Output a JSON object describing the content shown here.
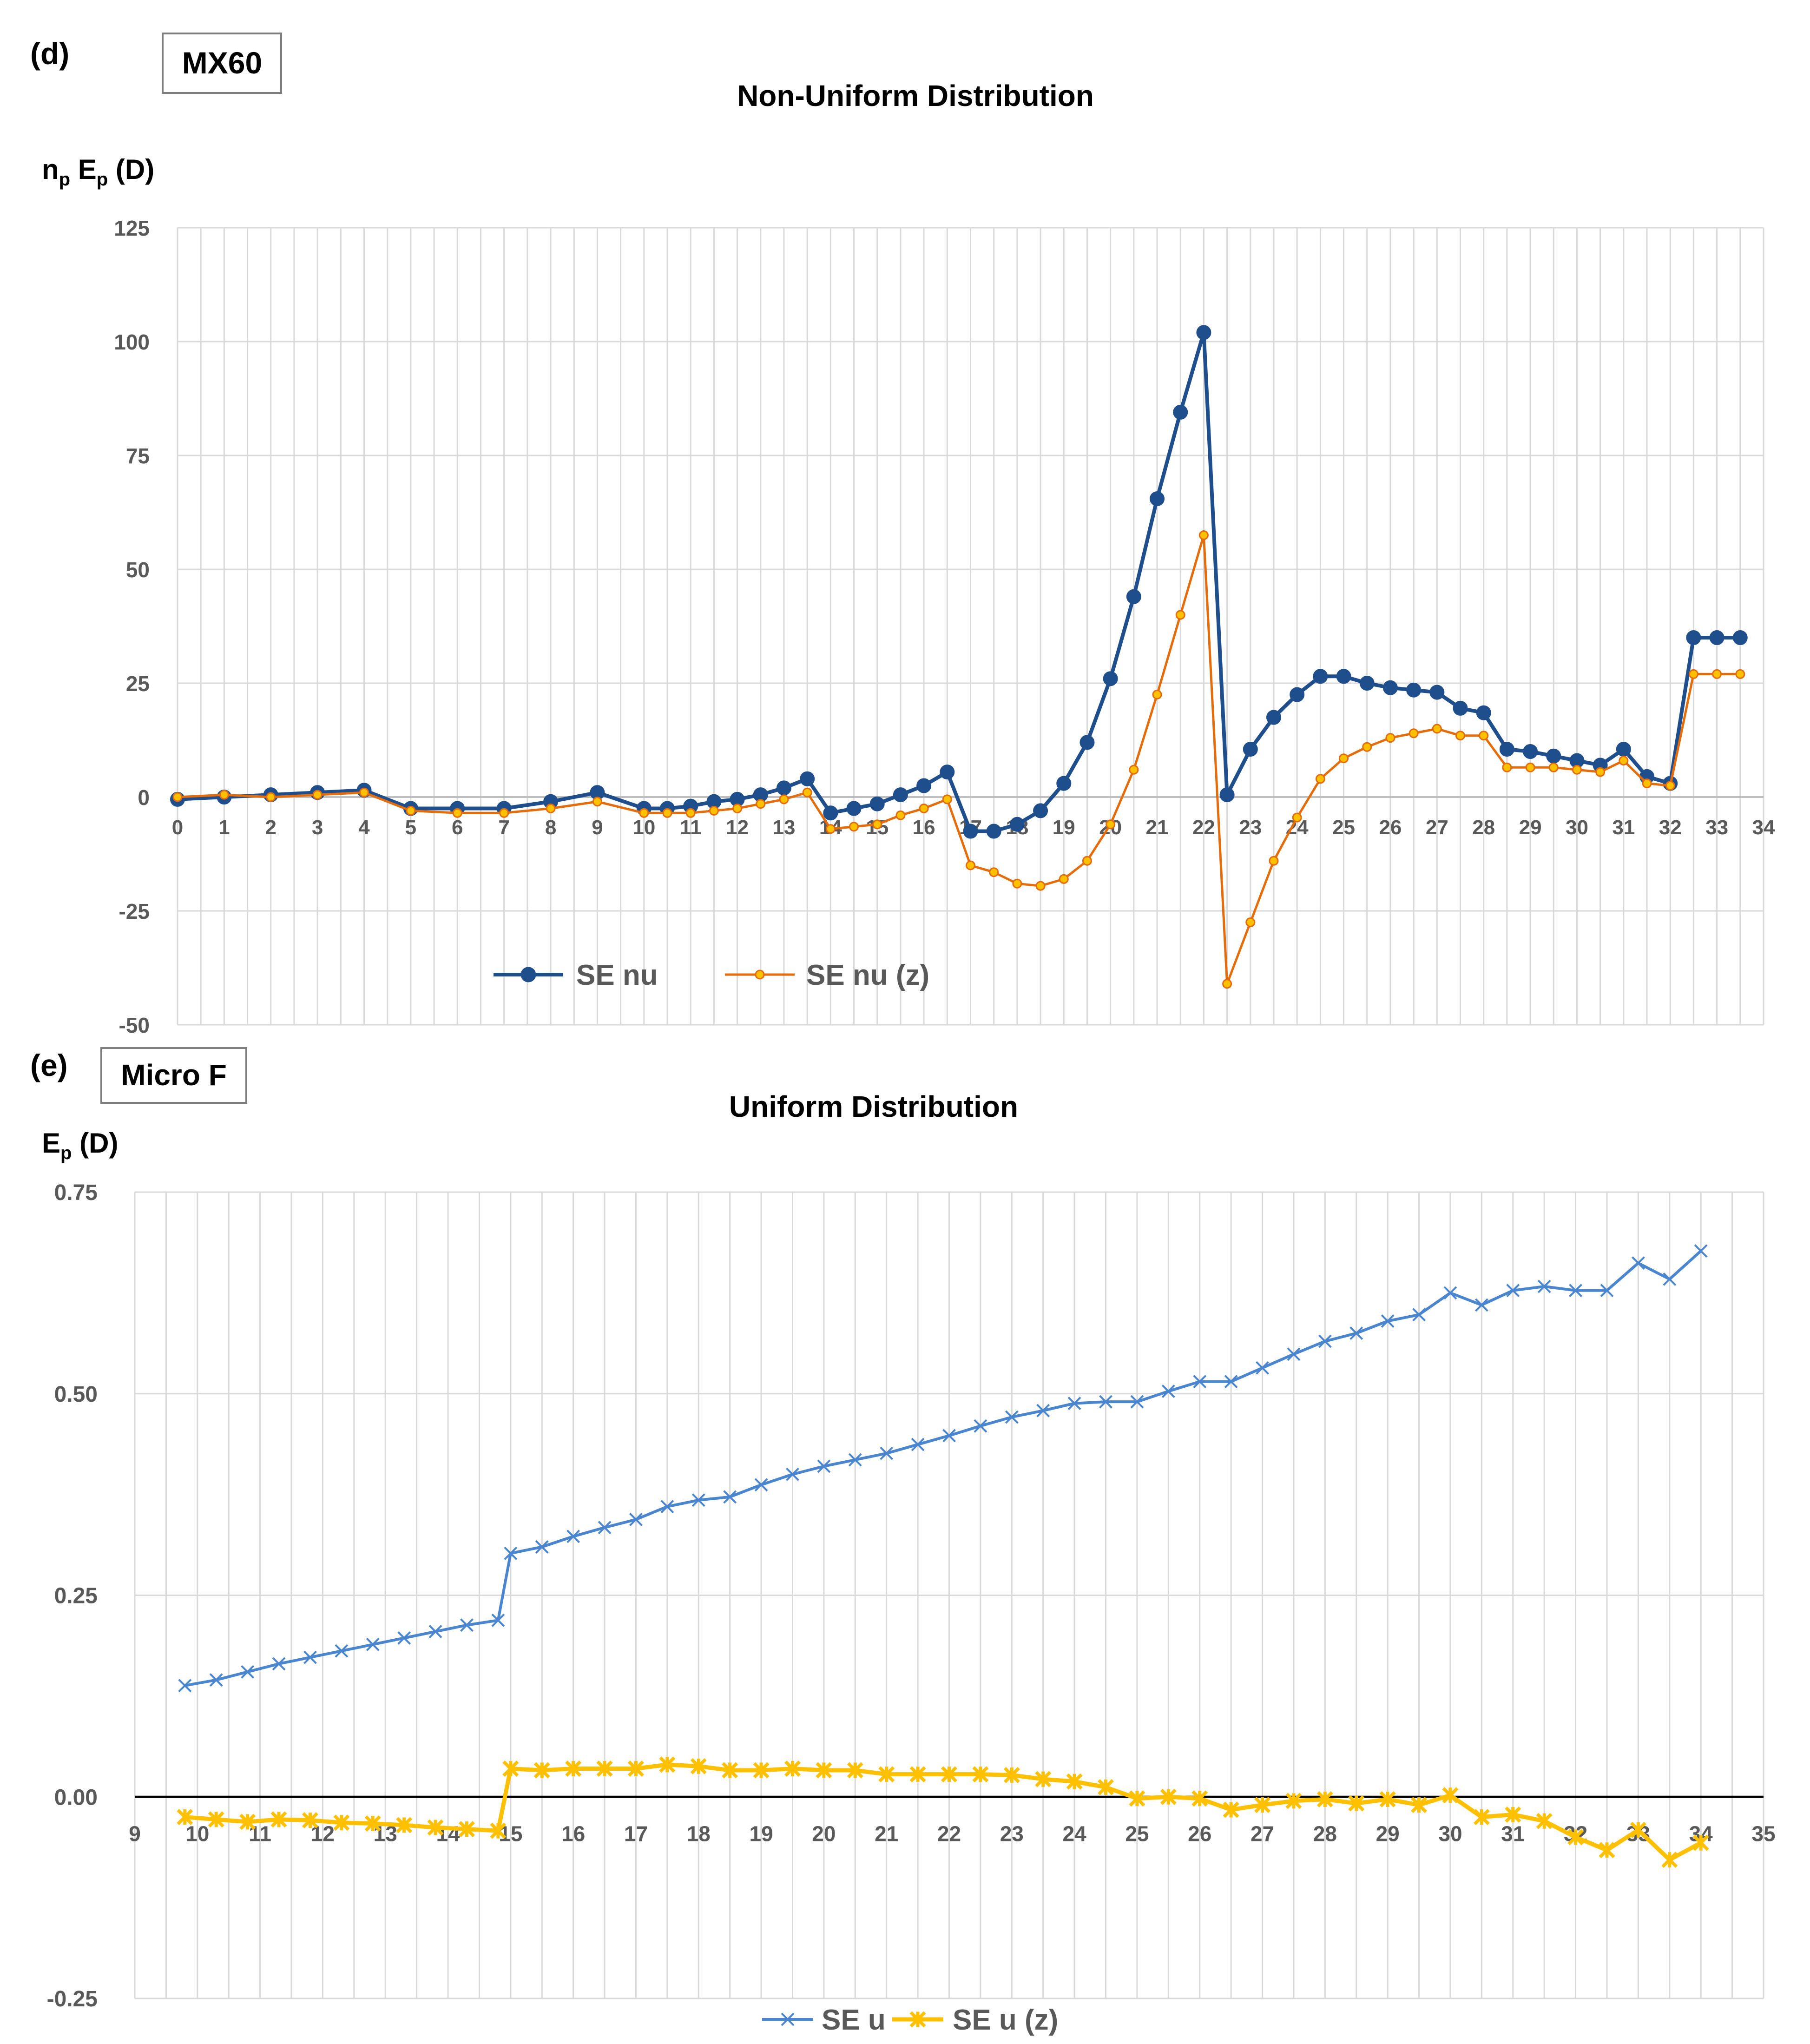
{
  "chart_data": [
    {
      "panel_label": "(d)",
      "tag": "MX60",
      "type": "line",
      "title": "Non-Uniform Distribution",
      "ylabel_main": "n",
      "ylabel_sub": "p",
      "ylabel_main2": " E",
      "ylabel_sub2": "p",
      "ylabel_unit": " (D)",
      "xlim": [
        0,
        34
      ],
      "ylim": [
        -50,
        125
      ],
      "xticks": [
        "0",
        "1",
        "2",
        "3",
        "4",
        "5",
        "6",
        "7",
        "8",
        "9",
        "10",
        "11",
        "12",
        "13",
        "14",
        "15",
        "16",
        "17",
        "18",
        "19",
        "20",
        "21",
        "22",
        "23",
        "24",
        "25",
        "26",
        "27",
        "28",
        "29",
        "30",
        "31",
        "32",
        "33",
        "34"
      ],
      "yticks": [
        "125",
        "100",
        "75",
        "50",
        "25",
        "0",
        "-25",
        "-50"
      ],
      "grid": true,
      "legend": "bottom-left",
      "colors": {
        "series1": "#1f4e8c",
        "series2": "#e46c0a"
      },
      "series": [
        {
          "name": "SE nu",
          "x": [
            0,
            1,
            2,
            3,
            4,
            5,
            6,
            7,
            8,
            9,
            10,
            10.5,
            11,
            11.5,
            12,
            12.5,
            13,
            13.5,
            14,
            14.5,
            15,
            15.5,
            16,
            16.5,
            17,
            17.5,
            18,
            18.5,
            19,
            19.5,
            20,
            20.5,
            21,
            21.5,
            22,
            22.5,
            23,
            23.5,
            24,
            24.5,
            25,
            25.5,
            26,
            26.5,
            27,
            27.5,
            28,
            28.5,
            29,
            29.5,
            30,
            30.5,
            31,
            31.5,
            32,
            32.5,
            33,
            33.5
          ],
          "values": [
            -0.5,
            0,
            0.5,
            1,
            1.5,
            -2.5,
            -2.5,
            -2.5,
            -1,
            1,
            -2.5,
            -2.5,
            -2,
            -1,
            -0.5,
            0.5,
            2,
            4,
            -3.5,
            -2.5,
            -1.5,
            0.5,
            2.5,
            5.5,
            -7.5,
            -7.5,
            -6,
            -3,
            3,
            12,
            26,
            44,
            65.5,
            84.5,
            102,
            0.5,
            10.5,
            17.5,
            22.5,
            26.5,
            26.5,
            25,
            24,
            23.5,
            23,
            19.5,
            18.5,
            10.5,
            10,
            9,
            8,
            7,
            10.5,
            4.5,
            3,
            35,
            35,
            35
          ]
        },
        {
          "name": "SE nu (z)",
          "x": [
            0,
            1,
            2,
            3,
            4,
            5,
            6,
            7,
            8,
            9,
            10,
            10.5,
            11,
            11.5,
            12,
            12.5,
            13,
            13.5,
            14,
            14.5,
            15,
            15.5,
            16,
            16.5,
            17,
            17.5,
            18,
            18.5,
            19,
            19.5,
            20,
            20.5,
            21,
            21.5,
            22,
            22.5,
            23,
            23.5,
            24,
            24.5,
            25,
            25.5,
            26,
            26.5,
            27,
            27.5,
            28,
            28.5,
            29,
            29.5,
            30,
            30.5,
            31,
            31.5,
            32,
            32.5,
            33,
            33.5
          ],
          "values": [
            0,
            0.5,
            0,
            0.5,
            1,
            -3,
            -3.5,
            -3.5,
            -2.5,
            -1,
            -3.5,
            -3.5,
            -3.5,
            -3,
            -2.5,
            -1.5,
            -0.5,
            1,
            -7,
            -6.5,
            -6,
            -4,
            -2.5,
            -0.5,
            -15,
            -16.5,
            -19,
            -19.5,
            -18,
            -14,
            -6,
            6,
            22.5,
            40,
            57.5,
            -41,
            -27.5,
            -14,
            -4.5,
            4,
            8.5,
            11,
            13,
            14,
            15,
            13.5,
            13.5,
            6.5,
            6.5,
            6.5,
            6,
            5.5,
            8,
            3,
            2.5,
            27,
            27,
            27
          ]
        }
      ]
    },
    {
      "panel_label": "(e)",
      "tag": "Micro F",
      "type": "line",
      "title": "Uniform Distribution",
      "ylabel_main": "E",
      "ylabel_sub": "p",
      "ylabel_unit": " (D)",
      "xlim": [
        9,
        35
      ],
      "ylim": [
        -0.25,
        0.75
      ],
      "xticks": [
        "9",
        "10",
        "11",
        "12",
        "13",
        "14",
        "15",
        "16",
        "17",
        "18",
        "19",
        "20",
        "21",
        "22",
        "23",
        "24",
        "25",
        "26",
        "27",
        "28",
        "29",
        "30",
        "31",
        "32",
        "33",
        "34",
        "35"
      ],
      "yticks": [
        "0.75",
        "0.50",
        "0.25",
        "0.00",
        "-0.25"
      ],
      "grid": true,
      "legend": "bottom-center",
      "colors": {
        "series1": "#4a86cf",
        "series2": "#ffc000",
        "zero_line": "#000000"
      },
      "series": [
        {
          "name": "SE u",
          "x": [
            9.8,
            10.3,
            10.8,
            11.3,
            11.8,
            12.3,
            12.8,
            13.3,
            13.8,
            14.3,
            14.8,
            15.0,
            15.5,
            16.0,
            16.5,
            17.0,
            17.5,
            18.0,
            18.5,
            19.0,
            19.5,
            20.0,
            20.5,
            21.0,
            21.5,
            22.0,
            22.5,
            23.0,
            23.5,
            24.0,
            24.5,
            25.0,
            25.5,
            26.0,
            26.5,
            27.0,
            27.5,
            28.0,
            28.5,
            29.0,
            29.5,
            30.0,
            30.5,
            31.0,
            31.5,
            32.0,
            32.5,
            33.0,
            33.5,
            34.0
          ],
          "values": [
            0.138,
            0.145,
            0.155,
            0.165,
            0.173,
            0.181,
            0.189,
            0.197,
            0.205,
            0.213,
            0.219,
            0.302,
            0.31,
            0.323,
            0.334,
            0.344,
            0.36,
            0.368,
            0.372,
            0.387,
            0.4,
            0.41,
            0.418,
            0.426,
            0.437,
            0.448,
            0.46,
            0.471,
            0.479,
            0.488,
            0.49,
            0.49,
            0.503,
            0.515,
            0.515,
            0.532,
            0.549,
            0.565,
            0.575,
            0.59,
            0.598,
            0.625,
            0.61,
            0.628,
            0.633,
            0.628,
            0.628,
            0.662,
            0.642,
            0.677
          ]
        },
        {
          "name": "SE u (z)",
          "x": [
            9.8,
            10.3,
            10.8,
            11.3,
            11.8,
            12.3,
            12.8,
            13.3,
            13.8,
            14.3,
            14.8,
            15.0,
            15.5,
            16.0,
            16.5,
            17.0,
            17.5,
            18.0,
            18.5,
            19.0,
            19.5,
            20.0,
            20.5,
            21.0,
            21.5,
            22.0,
            22.5,
            23.0,
            23.5,
            24.0,
            24.5,
            25.0,
            25.5,
            26.0,
            26.5,
            27.0,
            27.5,
            28.0,
            28.5,
            29.0,
            29.5,
            30.0,
            30.5,
            31.0,
            31.5,
            32.0,
            32.5,
            33.0,
            33.5,
            34.0
          ],
          "values": [
            -0.025,
            -0.028,
            -0.031,
            -0.028,
            -0.029,
            -0.032,
            -0.033,
            -0.035,
            -0.038,
            -0.04,
            -0.042,
            0.035,
            0.033,
            0.035,
            0.035,
            0.035,
            0.04,
            0.038,
            0.033,
            0.033,
            0.035,
            0.033,
            0.033,
            0.028,
            0.028,
            0.028,
            0.028,
            0.027,
            0.022,
            0.019,
            0.012,
            -0.002,
            0.0,
            -0.002,
            -0.016,
            -0.01,
            -0.005,
            -0.003,
            -0.008,
            -0.003,
            -0.01,
            0.002,
            -0.025,
            -0.022,
            -0.03,
            -0.05,
            -0.066,
            -0.041,
            -0.078,
            -0.057
          ]
        }
      ]
    }
  ]
}
